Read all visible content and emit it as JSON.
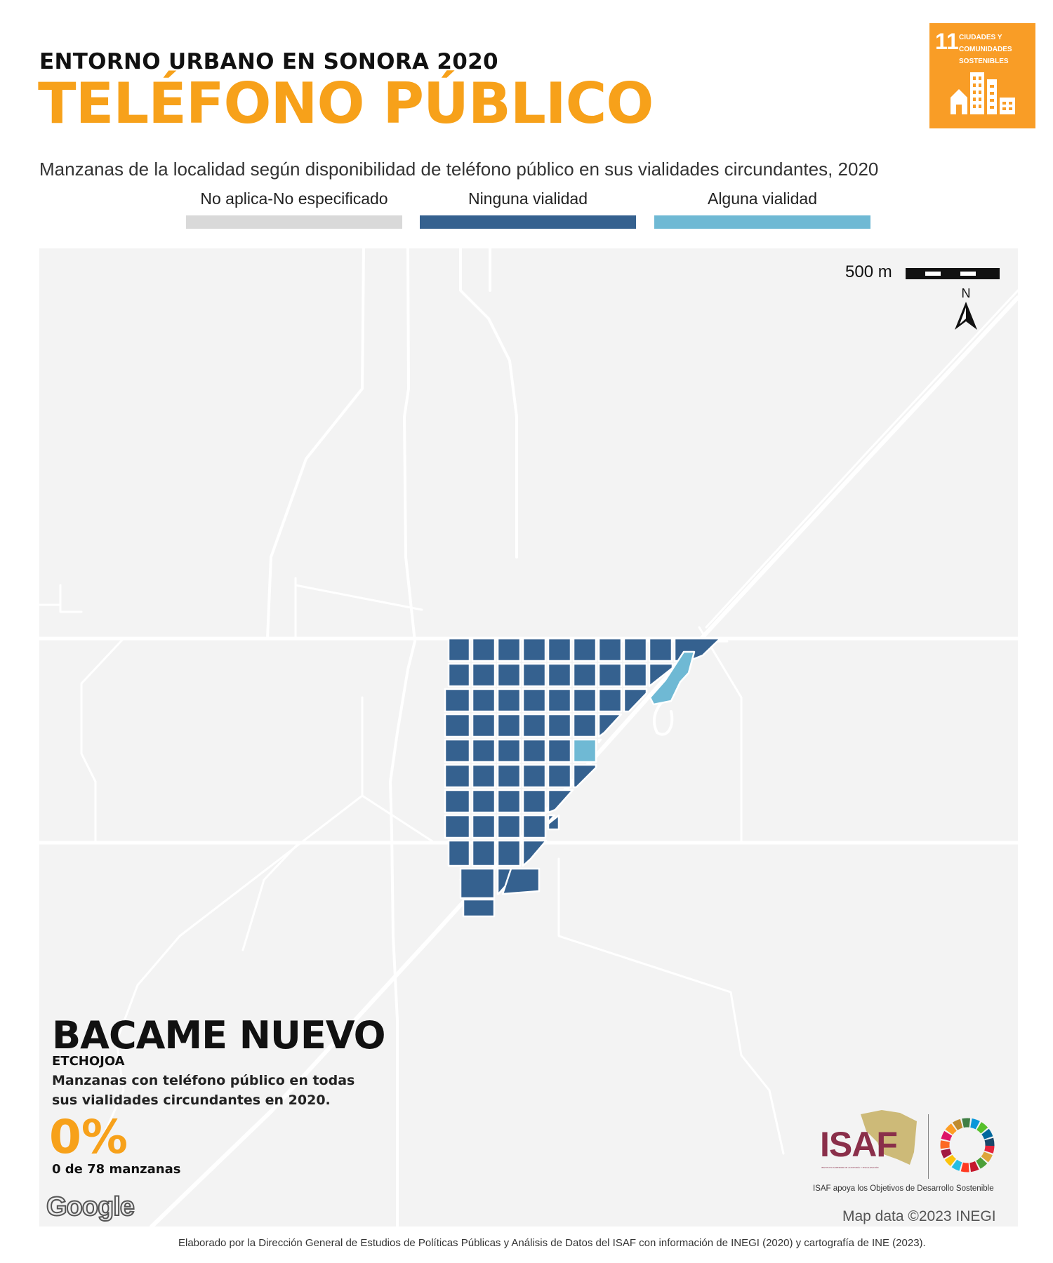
{
  "header": {
    "supertitle": "ENTORNO URBANO EN SONORA 2020",
    "title": "TELÉFONO PÚBLICO",
    "subtitle": "Manzanas de la localidad según disponibilidad de teléfono público en sus vialidades circundantes, 2020"
  },
  "legend": [
    {
      "label": "No aplica-No especificado",
      "color": "#d9d9d9"
    },
    {
      "label": "Ninguna vialidad",
      "color": "#35618f"
    },
    {
      "label": "Alguna vialidad",
      "color": "#6fb9d4"
    }
  ],
  "sdg_badge": {
    "number": "11",
    "text": "CIUDADES Y\nCOMUNIDADES\nSOSTENIBLES",
    "color": "#f99d26",
    "icon": "city-buildings-icon"
  },
  "map": {
    "scale_label": "500 m",
    "north_label": "N",
    "locality": "BACAME NUEVO",
    "municipality": "ETCHOJOA",
    "stat_description": "Manzanas con teléfono público en todas sus vialidades circundantes en 2020.",
    "stat_value": "0%",
    "stat_count": "0 de 78 manzanas",
    "google_logo": "Google",
    "map_credit": "Map data ©2023 INEGI"
  },
  "isaf": {
    "name": "ISAF",
    "subtitle": "INSTITUTO SUPERIOR DE AUDITORÍA Y FISCALIZACIÓN",
    "tagline": "ISAF apoya los Objetivos de Desarrollo Sostenible"
  },
  "footer": "Elaborado por la Dirección General de Estudios de Políticas Públicas y Análisis de Datos del ISAF con información de INEGI (2020) y cartografía de INE (2023)."
}
